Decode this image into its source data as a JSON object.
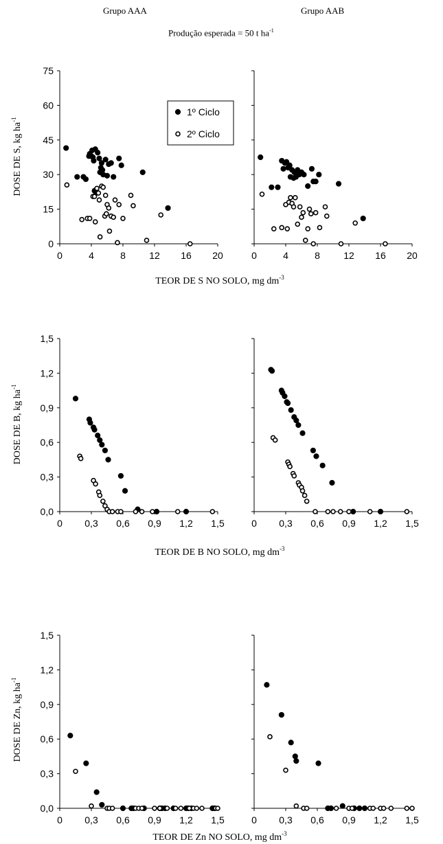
{
  "header": {
    "group_left": "Grupo AAA",
    "group_right": "Grupo AAB",
    "production_prefix": "Produção esperada = 50  t ha",
    "production_sup": "-1"
  },
  "panels": {
    "s": {
      "ylabel": "DOSE DE S, kg ha",
      "ylabel_sup": "-1",
      "xlabel": "TEOR DE S NO SOLO, mg dm",
      "xlabel_sup": "-3"
    },
    "b": {
      "ylabel": "DOSE DE B, kg ha",
      "ylabel_sup": "-1",
      "xlabel": "TEOR DE B NO SOLO, mg dm",
      "xlabel_sup": "-3"
    },
    "zn": {
      "ylabel": "DOSE DE Zn, kg ha",
      "ylabel_sup": "-1",
      "xlabel": "TEOR DE Zn NO SOLO, mg dm",
      "xlabel_sup": "-3"
    }
  },
  "legend": {
    "entries": [
      "1º Ciclo",
      "2º Ciclo"
    ],
    "placement": "top-right of first panel"
  },
  "chart_data": [
    {
      "id": "s_aaa",
      "type": "scatter",
      "xlim": [
        0,
        20
      ],
      "ylim": [
        0,
        75
      ],
      "xticks": [
        "0",
        "4",
        "8",
        "12",
        "16",
        "20"
      ],
      "yticks": [
        "0",
        "15",
        "30",
        "45",
        "60",
        "75"
      ],
      "series": [
        {
          "name": "1º Ciclo",
          "marker": "filled",
          "x": [
            0.8,
            2.2,
            3.0,
            3.3,
            3.7,
            3.8,
            4.0,
            4.1,
            4.2,
            4.3,
            4.4,
            4.5,
            4.6,
            4.8,
            5.0,
            5.1,
            5.2,
            5.3,
            5.4,
            5.5,
            5.8,
            6.0,
            6.2,
            6.5,
            6.8,
            7.5,
            7.8,
            10.5,
            13.7
          ],
          "y": [
            41.5,
            29,
            29,
            28,
            38,
            39,
            38,
            40.5,
            37.5,
            36,
            23,
            41,
            22,
            39.5,
            37,
            31,
            33,
            35,
            32,
            30,
            36.5,
            29.5,
            34.5,
            35,
            29,
            37,
            34,
            31,
            15.5
          ]
        },
        {
          "name": "2º Ciclo",
          "marker": "open",
          "x": [
            0.9,
            2.8,
            3.5,
            3.8,
            4.2,
            4.4,
            4.5,
            4.7,
            4.9,
            5.0,
            5.1,
            5.3,
            5.5,
            5.7,
            5.8,
            5.9,
            6.0,
            6.2,
            6.3,
            6.5,
            6.8,
            7.0,
            7.3,
            7.5,
            8.0,
            9.0,
            9.3,
            11.0,
            12.8,
            16.5
          ],
          "y": [
            25.5,
            10.5,
            11,
            11,
            20.5,
            20.5,
            9.5,
            24,
            22,
            19,
            3,
            25,
            24.5,
            12,
            21,
            13,
            17,
            15.5,
            5.5,
            12,
            11.5,
            19,
            0.5,
            17,
            11,
            21,
            16.5,
            1.5,
            12.5,
            0
          ]
        }
      ]
    },
    {
      "id": "s_aab",
      "type": "scatter",
      "xlim": [
        0,
        20
      ],
      "ylim": [
        0,
        75
      ],
      "xticks": [
        "0",
        "4",
        "8",
        "12",
        "16",
        "20"
      ],
      "yticks": [],
      "series": [
        {
          "name": "1º Ciclo",
          "marker": "filled",
          "x": [
            0.8,
            2.2,
            3.0,
            3.5,
            3.7,
            3.9,
            4.1,
            4.3,
            4.5,
            4.6,
            4.8,
            5.0,
            5.1,
            5.3,
            5.5,
            5.7,
            6.0,
            6.3,
            6.8,
            7.3,
            7.5,
            7.8,
            8.2,
            10.7,
            13.8
          ],
          "y": [
            37.5,
            24.5,
            24.5,
            36,
            32.5,
            35,
            35.5,
            33,
            34,
            29,
            32,
            28.5,
            31,
            29,
            32,
            30,
            31,
            30,
            25,
            32.5,
            27,
            27,
            30,
            26,
            11
          ]
        },
        {
          "name": "2º Ciclo",
          "marker": "open",
          "x": [
            1.0,
            2.5,
            3.5,
            4.0,
            4.2,
            4.4,
            4.6,
            4.8,
            5.0,
            5.2,
            5.5,
            5.8,
            6.0,
            6.2,
            6.5,
            6.8,
            7.0,
            7.2,
            7.5,
            7.8,
            8.3,
            9.0,
            9.2,
            11.0,
            12.8,
            16.6
          ],
          "y": [
            21.5,
            6.5,
            7,
            17,
            6.5,
            18,
            20,
            17.5,
            16,
            20,
            8.5,
            16,
            11.5,
            13.5,
            1.5,
            6.5,
            15,
            13,
            0,
            13.5,
            7,
            16,
            12,
            0,
            9,
            0
          ]
        }
      ]
    },
    {
      "id": "b_aaa",
      "type": "scatter",
      "xlim": [
        0,
        1.5
      ],
      "ylim": [
        0,
        1.5
      ],
      "xticks": [
        "0",
        "0,3",
        "0,6",
        "0,9",
        "1,2",
        "1,5"
      ],
      "yticks": [
        "0,0",
        "0,3",
        "0,6",
        "0,9",
        "1,2",
        "1,5"
      ],
      "series": [
        {
          "name": "1º Ciclo",
          "marker": "filled",
          "x": [
            0.15,
            0.28,
            0.29,
            0.32,
            0.33,
            0.36,
            0.38,
            0.4,
            0.43,
            0.46,
            0.58,
            0.62,
            0.74,
            0.92,
            1.2
          ],
          "y": [
            0.98,
            0.8,
            0.77,
            0.73,
            0.71,
            0.66,
            0.62,
            0.58,
            0.53,
            0.45,
            0.31,
            0.18,
            0.02,
            0.0,
            0.0
          ]
        },
        {
          "name": "2º Ciclo",
          "marker": "open",
          "x": [
            0.19,
            0.2,
            0.32,
            0.34,
            0.37,
            0.38,
            0.41,
            0.43,
            0.45,
            0.47,
            0.5,
            0.55,
            0.58,
            0.72,
            0.78,
            0.88,
            1.12,
            1.45
          ],
          "y": [
            0.48,
            0.46,
            0.27,
            0.24,
            0.17,
            0.14,
            0.09,
            0.05,
            0.02,
            0.0,
            0.0,
            0.0,
            0.0,
            0.0,
            0.0,
            0.0,
            0.0,
            0.0
          ]
        }
      ]
    },
    {
      "id": "b_aab",
      "type": "scatter",
      "xlim": [
        0,
        1.5
      ],
      "ylim": [
        0,
        1.5
      ],
      "xticks": [
        "0",
        "0,3",
        "0,6",
        "0,9",
        "1,2",
        "1,5"
      ],
      "yticks": [],
      "series": [
        {
          "name": "1º Ciclo",
          "marker": "filled",
          "x": [
            0.16,
            0.17,
            0.26,
            0.27,
            0.29,
            0.31,
            0.32,
            0.35,
            0.38,
            0.4,
            0.42,
            0.46,
            0.56,
            0.59,
            0.65,
            0.74,
            0.94,
            1.2
          ],
          "y": [
            1.23,
            1.22,
            1.05,
            1.03,
            1.0,
            0.95,
            0.94,
            0.88,
            0.82,
            0.79,
            0.75,
            0.68,
            0.53,
            0.48,
            0.4,
            0.25,
            0.0,
            0.0
          ]
        },
        {
          "name": "2º Ciclo",
          "marker": "open",
          "x": [
            0.18,
            0.2,
            0.32,
            0.33,
            0.34,
            0.37,
            0.38,
            0.42,
            0.43,
            0.45,
            0.46,
            0.48,
            0.5,
            0.58,
            0.7,
            0.75,
            0.82,
            0.9,
            1.1,
            1.45
          ],
          "y": [
            0.64,
            0.62,
            0.43,
            0.41,
            0.39,
            0.33,
            0.31,
            0.25,
            0.23,
            0.21,
            0.18,
            0.14,
            0.09,
            0.0,
            0.0,
            0.0,
            0.0,
            0.0,
            0.0,
            0.0
          ]
        }
      ]
    },
    {
      "id": "zn_aaa",
      "type": "scatter",
      "xlim": [
        0,
        1.5
      ],
      "ylim": [
        0,
        1.5
      ],
      "xticks": [
        "0",
        "0,3",
        "0,6",
        "0,9",
        "1,2",
        "1,5"
      ],
      "yticks": [
        "0,0",
        "0,3",
        "0,6",
        "0,9",
        "1,2",
        "1,5"
      ],
      "series": [
        {
          "name": "1º Ciclo",
          "marker": "filled",
          "x": [
            0.1,
            0.25,
            0.35,
            0.4,
            0.6,
            0.68,
            0.7,
            0.8,
            0.95,
            0.97,
            1.0,
            1.08,
            1.2,
            1.22,
            1.25,
            1.45,
            1.47
          ],
          "y": [
            0.63,
            0.39,
            0.14,
            0.03,
            0.0,
            0.0,
            0.0,
            0.0,
            0.0,
            0.0,
            0.0,
            0.0,
            0.0,
            0.0,
            0.0,
            0.0,
            0.0
          ]
        },
        {
          "name": "2º Ciclo",
          "marker": "open",
          "x": [
            0.15,
            0.3,
            0.45,
            0.47,
            0.5,
            0.72,
            0.75,
            0.78,
            0.9,
            0.95,
            1.02,
            1.1,
            1.15,
            1.23,
            1.27,
            1.3,
            1.35,
            1.48,
            1.5
          ],
          "y": [
            0.32,
            0.02,
            0.0,
            0.0,
            0.0,
            0.0,
            0.0,
            0.0,
            0.0,
            0.0,
            0.0,
            0.0,
            0.0,
            0.0,
            0.0,
            0.0,
            0.0,
            0.0,
            0.0
          ]
        }
      ]
    },
    {
      "id": "zn_aab",
      "type": "scatter",
      "xlim": [
        0,
        1.5
      ],
      "ylim": [
        0,
        1.5
      ],
      "xticks": [
        "0",
        "0,3",
        "0,6",
        "0,9",
        "1,2",
        "1,5"
      ],
      "yticks": [],
      "series": [
        {
          "name": "1º Ciclo",
          "marker": "filled",
          "x": [
            0.12,
            0.26,
            0.35,
            0.39,
            0.4,
            0.61,
            0.7,
            0.73,
            0.84,
            0.95,
            1.0,
            1.05
          ],
          "y": [
            1.07,
            0.81,
            0.57,
            0.45,
            0.41,
            0.39,
            0.0,
            0.0,
            0.02,
            0.0,
            0.0,
            0.0
          ]
        },
        {
          "name": "2º Ciclo",
          "marker": "open",
          "x": [
            0.15,
            0.3,
            0.4,
            0.47,
            0.5,
            0.78,
            0.9,
            0.93,
            1.1,
            1.13,
            1.2,
            1.23,
            1.3,
            1.45,
            1.5
          ],
          "y": [
            0.62,
            0.33,
            0.02,
            0.0,
            0.0,
            0.0,
            0.0,
            0.0,
            0.0,
            0.0,
            0.0,
            0.0,
            0.0,
            0.0,
            0.0
          ]
        }
      ]
    }
  ]
}
